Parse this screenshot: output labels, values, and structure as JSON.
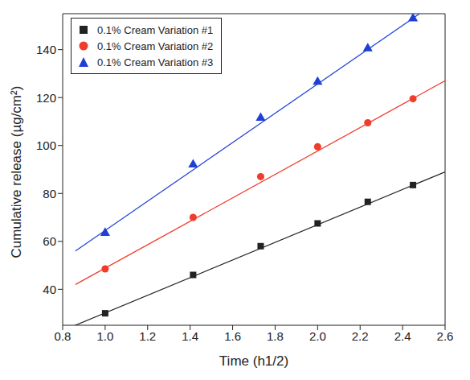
{
  "chart_data": {
    "type": "scatter",
    "x_label": "Time (h1/2)",
    "y_label": "Cumulative release (µg/cm²)",
    "xlim": [
      0.8,
      2.6
    ],
    "xticks": [
      {
        "value": 0.8,
        "label": "0.8"
      },
      {
        "value": 1.0,
        "label": "1.0"
      },
      {
        "value": 1.2,
        "label": "1.2"
      },
      {
        "value": 1.4,
        "label": "1.4"
      },
      {
        "value": 1.6,
        "label": "1.6"
      },
      {
        "value": 1.8,
        "label": "1.8"
      },
      {
        "value": 2.0,
        "label": "2.0"
      },
      {
        "value": 2.2,
        "label": "2.2"
      },
      {
        "value": 2.4,
        "label": "2.4"
      },
      {
        "value": 2.6,
        "label": "2.6"
      }
    ],
    "ylim": [
      25,
      155
    ],
    "yticks": [
      40,
      60,
      80,
      100,
      120,
      140
    ],
    "legend": "upper left",
    "x": [
      1.0,
      1.414,
      1.732,
      2.0,
      2.236,
      2.449
    ],
    "series": [
      {
        "name": "0.1% Cream Variation #1",
        "color": "#222222",
        "marker": "square",
        "values": [
          30,
          46,
          58,
          67.5,
          76.5,
          83.5
        ],
        "fit_line": {
          "x": [
            0.8,
            2.6
          ],
          "values": [
            22.8,
            89
          ]
        }
      },
      {
        "name": "0.1% Cream Variation #2",
        "color": "#f03c2c",
        "marker": "circle",
        "values": [
          48.5,
          70,
          87,
          99.5,
          109.5,
          119.5
        ],
        "fit_line": {
          "x": [
            0.86,
            2.6
          ],
          "values": [
            42,
            127
          ]
        }
      },
      {
        "name": "0.1% Cream Variation #3",
        "color": "#1f3fd6",
        "marker": "triangle",
        "values": [
          63.5,
          92,
          111.5,
          126.5,
          140.5,
          153
        ],
        "fit_line": {
          "x": [
            0.86,
            2.48
          ],
          "values": [
            56,
            155
          ]
        }
      }
    ]
  }
}
